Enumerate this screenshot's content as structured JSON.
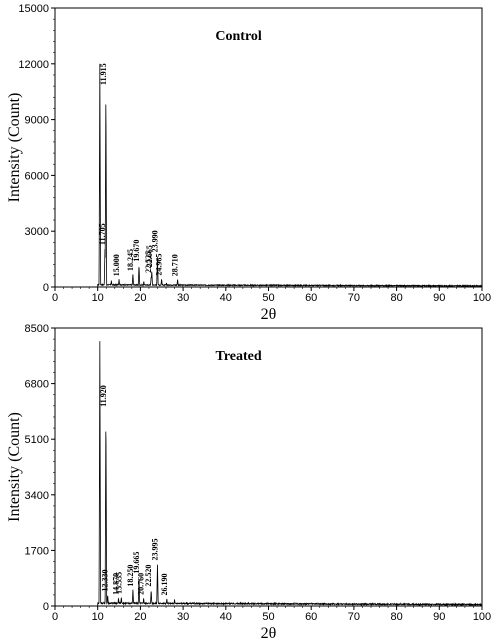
{
  "chart_data": [
    {
      "type": "line",
      "title": "Control",
      "xlabel": "2θ",
      "ylabel": "Intensity (Count)",
      "xlim": [
        0,
        100
      ],
      "ylim": [
        0,
        15000
      ],
      "x_ticks": [
        0,
        10,
        20,
        30,
        40,
        50,
        60,
        70,
        80,
        90,
        100
      ],
      "y_ticks": [
        0,
        3000,
        6000,
        9000,
        12000,
        15000
      ],
      "grid": false,
      "legend": "none",
      "baseline": 80,
      "peaks": [
        {
          "x": 10.5,
          "y": 12000
        },
        {
          "x": 11.705,
          "y": 2100
        },
        {
          "x": 11.915,
          "y": 10700
        },
        {
          "x": 13.2,
          "y": 350
        },
        {
          "x": 15.0,
          "y": 420
        },
        {
          "x": 18.245,
          "y": 700
        },
        {
          "x": 19.67,
          "y": 1200
        },
        {
          "x": 20.8,
          "y": 300
        },
        {
          "x": 22.525,
          "y": 600
        },
        {
          "x": 22.665,
          "y": 900
        },
        {
          "x": 23.99,
          "y": 1700
        },
        {
          "x": 24.965,
          "y": 450
        },
        {
          "x": 26.1,
          "y": 220
        },
        {
          "x": 28.71,
          "y": 420
        }
      ],
      "peak_labels": [
        {
          "x": 11.915,
          "y": 10700,
          "label": "11.915"
        },
        {
          "x": 11.705,
          "y": 2100,
          "label": "11.705"
        },
        {
          "x": 15.0,
          "y": 420,
          "label": "15.000"
        },
        {
          "x": 18.245,
          "y": 700,
          "label": "18.245"
        },
        {
          "x": 19.67,
          "y": 1200,
          "label": "19.670"
        },
        {
          "x": 22.525,
          "y": 600,
          "label": "22.525"
        },
        {
          "x": 22.665,
          "y": 900,
          "label": "22.665"
        },
        {
          "x": 23.99,
          "y": 1700,
          "label": "23.990"
        },
        {
          "x": 24.965,
          "y": 450,
          "label": "24.965"
        },
        {
          "x": 28.71,
          "y": 420,
          "label": "28.710"
        }
      ]
    },
    {
      "type": "line",
      "title": "Treated",
      "xlabel": "2θ",
      "ylabel": "Intensity (Count)",
      "xlim": [
        0,
        100
      ],
      "ylim": [
        0,
        8500
      ],
      "x_ticks": [
        0,
        10,
        20,
        30,
        40,
        50,
        60,
        70,
        80,
        90,
        100
      ],
      "y_ticks": [
        0,
        1700,
        3400,
        5100,
        6800,
        8500
      ],
      "grid": false,
      "legend": "none",
      "baseline": 60,
      "peaks": [
        {
          "x": 10.5,
          "y": 8100
        },
        {
          "x": 11.92,
          "y": 6000
        },
        {
          "x": 12.33,
          "y": 350
        },
        {
          "x": 14.87,
          "y": 250
        },
        {
          "x": 15.535,
          "y": 280
        },
        {
          "x": 18.25,
          "y": 500
        },
        {
          "x": 19.665,
          "y": 900
        },
        {
          "x": 20.76,
          "y": 250
        },
        {
          "x": 22.52,
          "y": 500
        },
        {
          "x": 23.995,
          "y": 1300
        },
        {
          "x": 26.19,
          "y": 230
        },
        {
          "x": 28.0,
          "y": 200
        }
      ],
      "peak_labels": [
        {
          "x": 11.92,
          "y": 6000,
          "label": "11.920"
        },
        {
          "x": 12.33,
          "y": 350,
          "label": "12.330"
        },
        {
          "x": 14.87,
          "y": 250,
          "label": "14.870"
        },
        {
          "x": 15.535,
          "y": 280,
          "label": "15.535"
        },
        {
          "x": 18.25,
          "y": 500,
          "label": "18.250"
        },
        {
          "x": 19.665,
          "y": 900,
          "label": "19.665"
        },
        {
          "x": 20.76,
          "y": 250,
          "label": "20.760"
        },
        {
          "x": 22.52,
          "y": 500,
          "label": "22.520"
        },
        {
          "x": 23.995,
          "y": 1300,
          "label": "23.995"
        },
        {
          "x": 26.19,
          "y": 230,
          "label": "26.190"
        }
      ]
    }
  ]
}
